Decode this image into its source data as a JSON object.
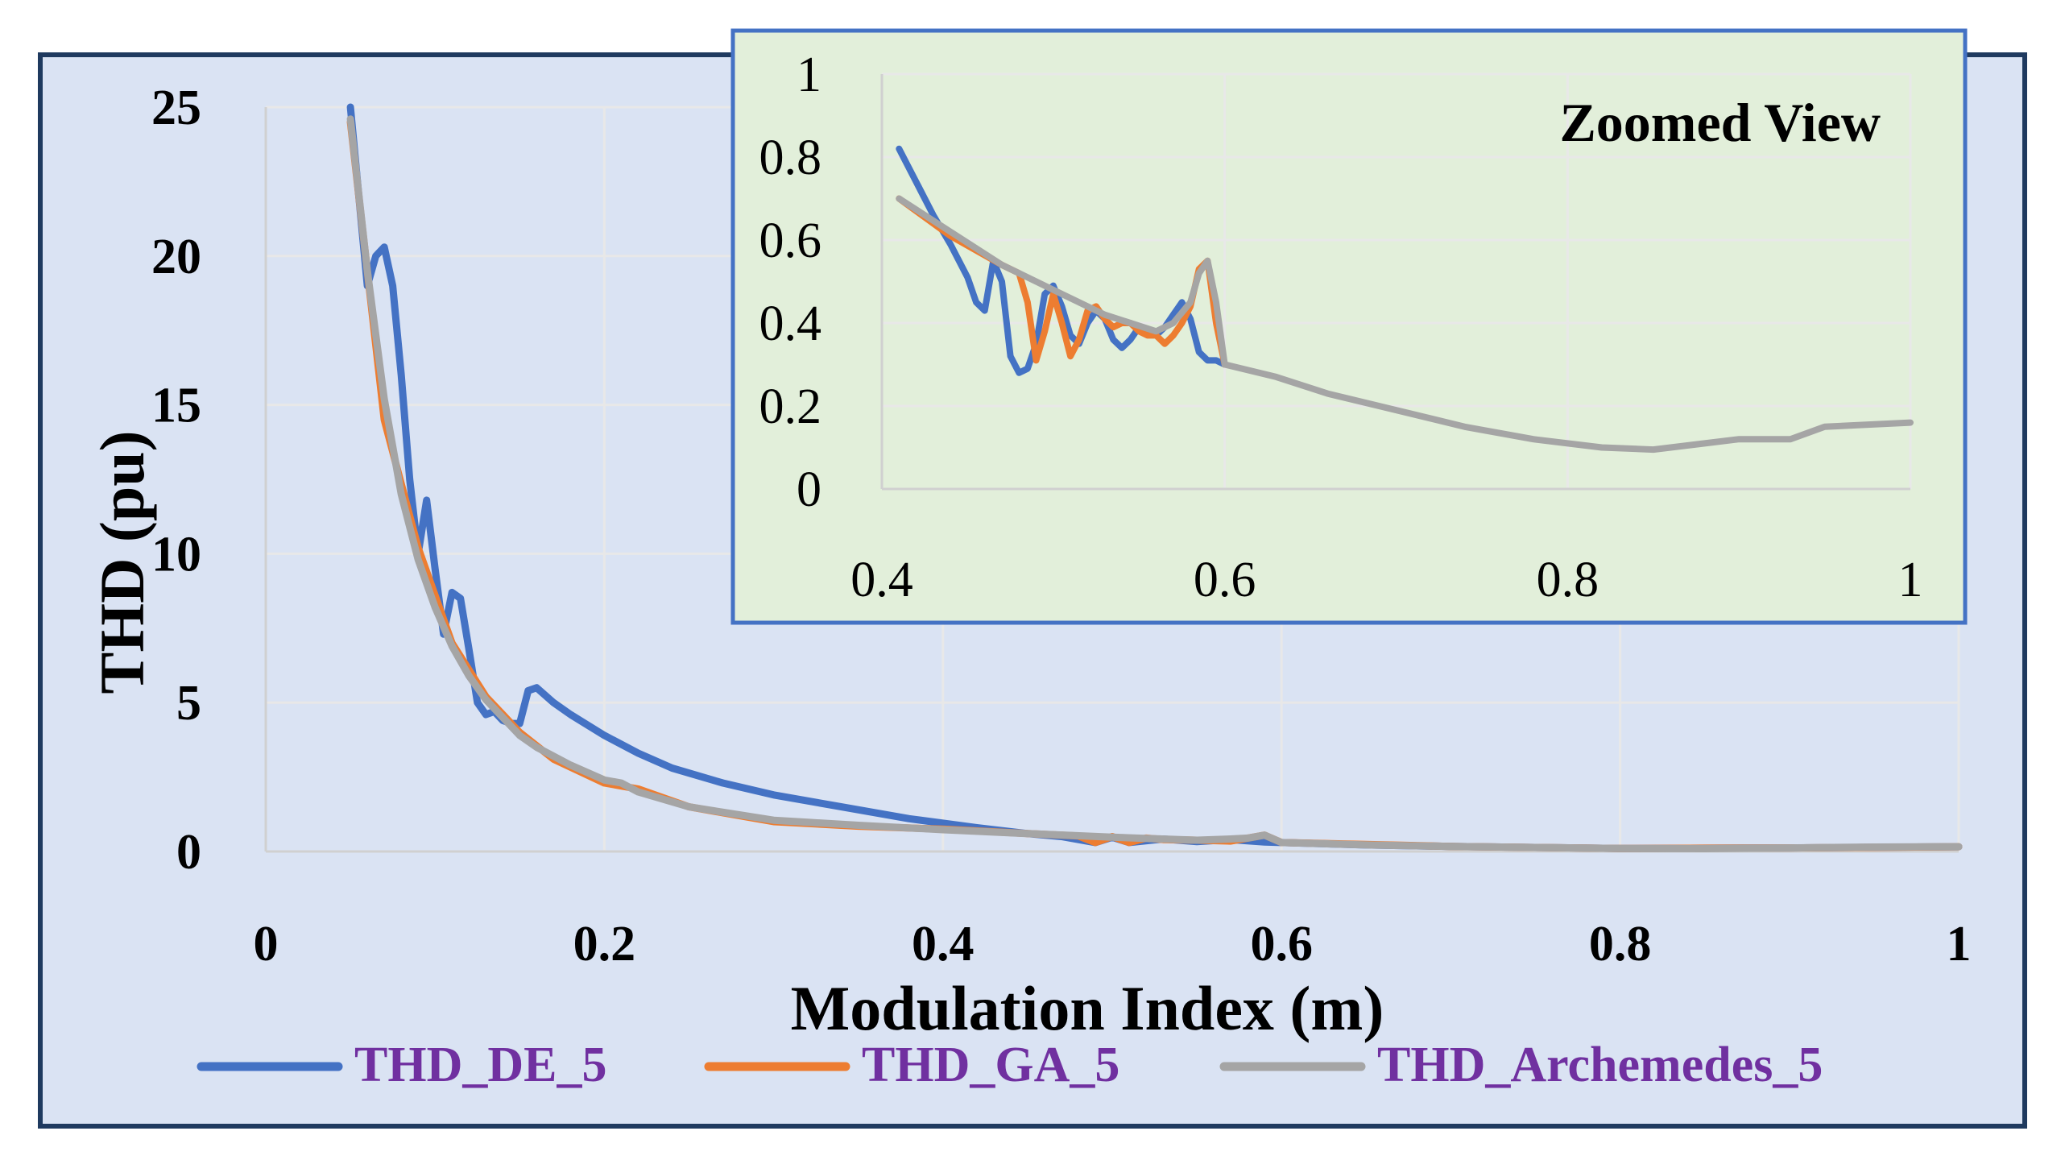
{
  "colors": {
    "outer_border": "#1f3a5f",
    "plot_background": "#dae3f3",
    "inset_background": "#e2efda",
    "inset_border": "#4472c4",
    "gridline": "#e8e8e8",
    "axis_line": "#d0d0d0",
    "legend_text": "#7030a0"
  },
  "chart_data": [
    {
      "id": "main",
      "type": "line",
      "xlabel": "Modulation Index (m)",
      "ylabel": "THD (pu)",
      "xlim": [
        0,
        1
      ],
      "ylim": [
        0,
        25
      ],
      "x_ticks": [
        0,
        0.2,
        0.4,
        0.6,
        0.8,
        1
      ],
      "x_tick_labels": [
        "0",
        "0.2",
        "0.4",
        "0.6",
        "0.8",
        "1"
      ],
      "y_ticks": [
        0,
        5,
        10,
        15,
        20,
        25
      ],
      "y_tick_labels": [
        "0",
        "5",
        "10",
        "15",
        "20",
        "25"
      ],
      "grid": true,
      "legend_position": "bottom",
      "series": [
        {
          "name": "THD_DE_5",
          "color": "#4472c4",
          "x": [
            0.05,
            0.055,
            0.06,
            0.065,
            0.07,
            0.075,
            0.08,
            0.085,
            0.09,
            0.095,
            0.1,
            0.105,
            0.11,
            0.115,
            0.12,
            0.125,
            0.13,
            0.135,
            0.14,
            0.145,
            0.15,
            0.155,
            0.16,
            0.17,
            0.18,
            0.2,
            0.22,
            0.24,
            0.27,
            0.3,
            0.34,
            0.38,
            0.42,
            0.45,
            0.47,
            0.49,
            0.5,
            0.51,
            0.53,
            0.55,
            0.57,
            0.59,
            0.6,
            0.65,
            0.7,
            0.8,
            0.9,
            1.0
          ],
          "values": [
            25,
            22,
            19,
            20,
            20.3,
            19,
            16,
            12.5,
            10,
            11.8,
            9.5,
            7.3,
            8.7,
            8.5,
            6.8,
            5.0,
            4.6,
            4.7,
            4.4,
            4.3,
            4.3,
            5.4,
            5.5,
            5.0,
            4.6,
            3.9,
            3.3,
            2.8,
            2.3,
            1.9,
            1.5,
            1.1,
            0.8,
            0.6,
            0.5,
            0.3,
            0.48,
            0.3,
            0.42,
            0.33,
            0.4,
            0.32,
            0.3,
            0.22,
            0.17,
            0.1,
            0.12,
            0.16
          ]
        },
        {
          "name": "THD_GA_5",
          "color": "#ed7d31",
          "x": [
            0.05,
            0.07,
            0.09,
            0.11,
            0.13,
            0.14,
            0.15,
            0.17,
            0.2,
            0.22,
            0.25,
            0.3,
            0.35,
            0.4,
            0.45,
            0.48,
            0.49,
            0.5,
            0.51,
            0.52,
            0.53,
            0.55,
            0.57,
            0.58,
            0.59,
            0.6,
            0.7,
            0.8,
            0.9,
            1.0
          ],
          "values": [
            24.5,
            14.5,
            10.2,
            7.0,
            5.2,
            4.6,
            4.0,
            3.1,
            2.3,
            2.1,
            1.5,
            1.0,
            0.85,
            0.75,
            0.6,
            0.52,
            0.3,
            0.5,
            0.3,
            0.45,
            0.4,
            0.38,
            0.35,
            0.45,
            0.55,
            0.3,
            0.17,
            0.1,
            0.12,
            0.16
          ]
        },
        {
          "name": "THD_Archemedes_5",
          "color": "#a5a5a5",
          "x": [
            0.05,
            0.06,
            0.07,
            0.08,
            0.09,
            0.1,
            0.11,
            0.12,
            0.13,
            0.14,
            0.15,
            0.16,
            0.18,
            0.2,
            0.21,
            0.22,
            0.25,
            0.3,
            0.35,
            0.4,
            0.45,
            0.5,
            0.55,
            0.57,
            0.58,
            0.59,
            0.6,
            0.65,
            0.7,
            0.8,
            0.85,
            0.9,
            0.95,
            1.0
          ],
          "values": [
            24.6,
            19.5,
            15.2,
            12.0,
            9.8,
            8.2,
            6.9,
            5.9,
            5.1,
            4.5,
            3.9,
            3.5,
            2.9,
            2.4,
            2.3,
            2.0,
            1.5,
            1.05,
            0.88,
            0.73,
            0.6,
            0.48,
            0.38,
            0.42,
            0.45,
            0.55,
            0.3,
            0.22,
            0.17,
            0.1,
            0.095,
            0.12,
            0.15,
            0.16
          ]
        }
      ]
    },
    {
      "id": "inset",
      "type": "line",
      "title": "Zoomed View",
      "xlim": [
        0.4,
        1
      ],
      "ylim": [
        0,
        1
      ],
      "x_ticks": [
        0.4,
        0.6,
        0.8,
        1
      ],
      "x_tick_labels": [
        "0.4",
        "0.6",
        "0.8",
        "1"
      ],
      "y_ticks": [
        0,
        0.2,
        0.4,
        0.6,
        0.8,
        1
      ],
      "y_tick_labels": [
        "0",
        "0.2",
        "0.4",
        "0.6",
        "0.8",
        "1"
      ],
      "grid": true,
      "series": [
        {
          "name": "THD_DE_5",
          "color": "#4472c4",
          "x": [
            0.41,
            0.42,
            0.43,
            0.44,
            0.45,
            0.455,
            0.46,
            0.465,
            0.47,
            0.475,
            0.48,
            0.485,
            0.49,
            0.495,
            0.5,
            0.505,
            0.51,
            0.515,
            0.52,
            0.525,
            0.53,
            0.535,
            0.54,
            0.545,
            0.55,
            0.555,
            0.56,
            0.565,
            0.57,
            0.575,
            0.58,
            0.585,
            0.59,
            0.595,
            0.6
          ],
          "values": [
            0.82,
            0.74,
            0.66,
            0.59,
            0.51,
            0.45,
            0.43,
            0.55,
            0.5,
            0.32,
            0.28,
            0.29,
            0.35,
            0.47,
            0.49,
            0.44,
            0.37,
            0.35,
            0.4,
            0.43,
            0.41,
            0.36,
            0.34,
            0.36,
            0.39,
            0.38,
            0.37,
            0.39,
            0.42,
            0.45,
            0.41,
            0.33,
            0.31,
            0.31,
            0.3
          ]
        },
        {
          "name": "THD_GA_5",
          "color": "#ed7d31",
          "x": [
            0.41,
            0.44,
            0.47,
            0.48,
            0.485,
            0.49,
            0.495,
            0.5,
            0.505,
            0.51,
            0.515,
            0.52,
            0.525,
            0.53,
            0.535,
            0.54,
            0.545,
            0.55,
            0.555,
            0.56,
            0.565,
            0.57,
            0.575,
            0.58,
            0.585,
            0.59,
            0.595,
            0.6
          ],
          "values": [
            0.7,
            0.61,
            0.54,
            0.52,
            0.45,
            0.31,
            0.38,
            0.47,
            0.4,
            0.32,
            0.36,
            0.43,
            0.44,
            0.41,
            0.39,
            0.4,
            0.4,
            0.38,
            0.37,
            0.37,
            0.35,
            0.37,
            0.4,
            0.44,
            0.53,
            0.55,
            0.4,
            0.3
          ]
        },
        {
          "name": "THD_Archemedes_5",
          "color": "#a5a5a5",
          "x": [
            0.41,
            0.44,
            0.47,
            0.5,
            0.53,
            0.56,
            0.57,
            0.58,
            0.585,
            0.59,
            0.595,
            0.6,
            0.63,
            0.66,
            0.7,
            0.74,
            0.78,
            0.82,
            0.85,
            0.88,
            0.9,
            0.93,
            0.95,
            1.0
          ],
          "values": [
            0.7,
            0.62,
            0.54,
            0.48,
            0.42,
            0.38,
            0.4,
            0.45,
            0.52,
            0.55,
            0.45,
            0.3,
            0.27,
            0.23,
            0.19,
            0.15,
            0.12,
            0.1,
            0.095,
            0.11,
            0.12,
            0.12,
            0.15,
            0.16
          ]
        }
      ]
    }
  ]
}
